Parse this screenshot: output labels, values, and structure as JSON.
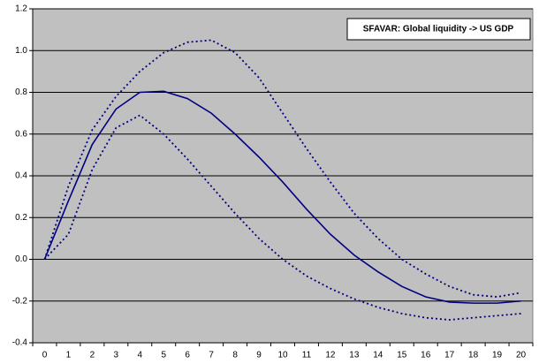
{
  "chart_data": {
    "type": "line",
    "title": "SFAVAR: Global liquidity -> US GDP",
    "categories": [
      "0",
      "1",
      "2",
      "3",
      "4",
      "5",
      "6",
      "7",
      "8",
      "9",
      "10",
      "11",
      "12",
      "13",
      "14",
      "15",
      "16",
      "17",
      "18",
      "19",
      "20"
    ],
    "series": [
      {
        "color": "#000080",
        "dash": "solid",
        "values": [
          0,
          0.28,
          0.55,
          0.72,
          0.8,
          0.805,
          0.77,
          0.7,
          0.6,
          0.49,
          0.37,
          0.24,
          0.12,
          0.02,
          -0.06,
          -0.13,
          -0.18,
          -0.205,
          -0.21,
          -0.21,
          -0.2
        ]
      },
      {
        "color": "#000080",
        "dash": "dotted",
        "values": [
          0,
          0.35,
          0.62,
          0.78,
          0.9,
          0.99,
          1.04,
          1.05,
          0.99,
          0.87,
          0.7,
          0.53,
          0.37,
          0.22,
          0.1,
          0.0,
          -0.07,
          -0.13,
          -0.17,
          -0.18,
          -0.16
        ]
      },
      {
        "color": "#000080",
        "dash": "dotted",
        "values": [
          0,
          0.12,
          0.43,
          0.63,
          0.69,
          0.6,
          0.48,
          0.35,
          0.22,
          0.1,
          0.0,
          -0.08,
          -0.14,
          -0.19,
          -0.23,
          -0.26,
          -0.28,
          -0.29,
          -0.28,
          -0.27,
          -0.26
        ]
      }
    ],
    "ylim": [
      -0.4,
      1.2
    ],
    "yticks": [
      -0.4,
      -0.2,
      {
        "value": 0,
        "label": "0.0"
      },
      0.2,
      0.4,
      0.6,
      0.8,
      {
        "value": 1,
        "label": "1.0"
      },
      1.2
    ],
    "grid": true,
    "plot_background": "#c0c0c0"
  }
}
